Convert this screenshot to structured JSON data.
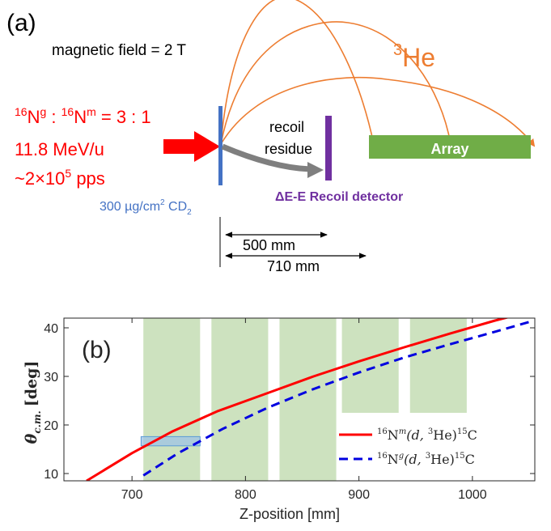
{
  "panel_a": {
    "label": "(a)",
    "field_text": "magnetic field = 2 T",
    "helium_label": "He",
    "helium_mass_number": "3",
    "beam_ratio": {
      "sup1": "16",
      "g_sym": "N",
      "g_sup": "g",
      "sep": " : ",
      "sup2": "16",
      "m_sym": "N",
      "m_sup": "m",
      "ratio": " = 3 : 1"
    },
    "beam_energy": "11.8 MeV/u",
    "beam_rate": {
      "prefix": "~2×10",
      "exp": "5",
      "suffix": " pps"
    },
    "target": {
      "thickness": "300 µg/cm",
      "unit_sup": "2",
      "material": " CD",
      "material_sub": "2"
    },
    "recoil_label_1": "recoil",
    "recoil_label_2": "residue",
    "recoil_detector": "ΔE-E Recoil detector",
    "array_label": "Array",
    "dist_1": "500 mm",
    "dist_2": "710 mm",
    "colors": {
      "beam": "#ff0000",
      "target": "#4472c4",
      "recoil": "#7030a0",
      "array": "#70ad47",
      "helium": "#ed7d31",
      "residue_arrow": "#7f7f7f"
    }
  },
  "chart_data": {
    "type": "line",
    "panel_label": "(b)",
    "xlabel": "Z-position [mm]",
    "ylabel": "θ",
    "ylabel_sub": "c.m.",
    "ylabel_unit": "[deg]",
    "xlim": [
      640,
      1055
    ],
    "ylim": [
      8.5,
      42
    ],
    "xticks": [
      700,
      800,
      900,
      1000
    ],
    "yticks": [
      10,
      20,
      30,
      40
    ],
    "series": [
      {
        "name": "16Nm(d,3He)15C",
        "legend": {
          "pre_sup": "16",
          "sym": "N",
          "state_sup": "m",
          "reaction": "(d, ",
          "proj_sup": "3",
          "ejectile": "He)",
          "res_sup": "15",
          "residue": "C"
        },
        "color": "#ff0000",
        "dash": "solid",
        "x": [
          660,
          700,
          735,
          775,
          820,
          860,
          900,
          940,
          980,
          1020,
          1045
        ],
        "y": [
          8.5,
          14.2,
          18.6,
          22.8,
          26.6,
          30.0,
          33.1,
          36.0,
          38.8,
          41.5,
          43.0
        ]
      },
      {
        "name": "16Ng(d,3He)15C",
        "legend": {
          "pre_sup": "16",
          "sym": "N",
          "state_sup": "g",
          "reaction": "(d, ",
          "proj_sup": "3",
          "ejectile": "He)",
          "res_sup": "15",
          "residue": "C"
        },
        "color": "#0000e0",
        "dash": "dashed",
        "x": [
          710,
          740,
          780,
          820,
          860,
          900,
          940,
          980,
          1020,
          1050
        ],
        "y": [
          9.6,
          14.1,
          19.2,
          23.6,
          27.4,
          30.8,
          33.9,
          36.6,
          39.2,
          41.2
        ]
      }
    ],
    "shaded_regions": [
      {
        "x": [
          710,
          760
        ],
        "y": [
          8.5,
          42
        ]
      },
      {
        "x": [
          770,
          820
        ],
        "y": [
          8.5,
          42
        ]
      },
      {
        "x": [
          830,
          880
        ],
        "y": [
          8.5,
          42
        ]
      },
      {
        "x": [
          885,
          935
        ],
        "y": [
          22.5,
          42
        ]
      },
      {
        "x": [
          945,
          995
        ],
        "y": [
          22.5,
          42
        ]
      }
    ],
    "highlight_box": {
      "x": [
        708,
        760
      ],
      "y": [
        15.7,
        17.6
      ]
    },
    "grid": false,
    "legend_position": "lower-right"
  }
}
